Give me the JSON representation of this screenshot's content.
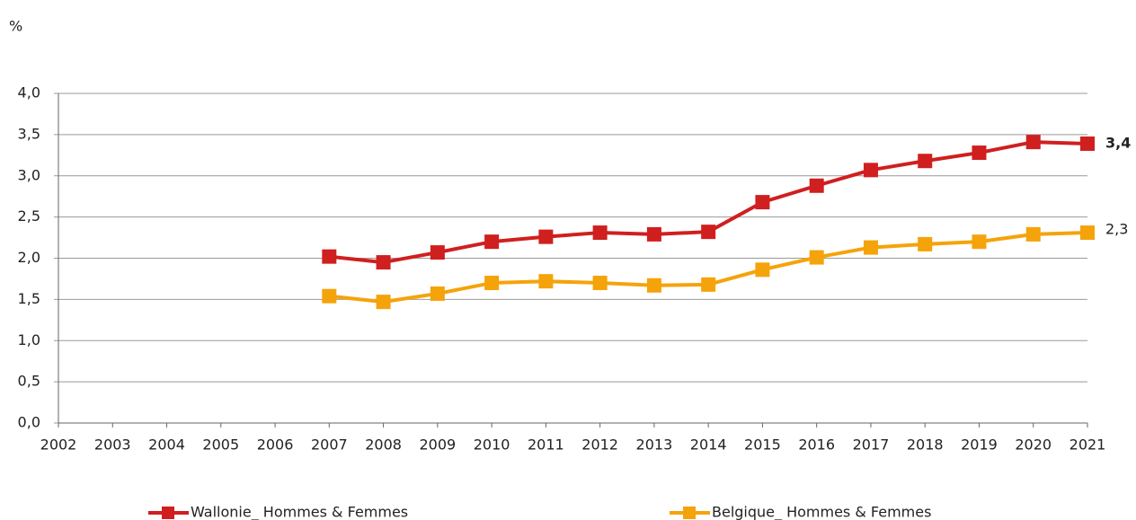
{
  "chart_data": {
    "type": "line",
    "ylabel": "%",
    "categories": [
      "2002",
      "2003",
      "2004",
      "2005",
      "2006",
      "2007",
      "2008",
      "2009",
      "2010",
      "2011",
      "2012",
      "2013",
      "2014",
      "2015",
      "2016",
      "2017",
      "2018",
      "2019",
      "2020",
      "2021"
    ],
    "series": [
      {
        "name": "Wallonie_ Hommes & Femmes",
        "color": "#d01f1f",
        "values": [
          null,
          null,
          null,
          null,
          null,
          2.02,
          1.95,
          2.07,
          2.2,
          2.26,
          2.31,
          2.29,
          2.32,
          2.68,
          2.88,
          3.07,
          3.18,
          3.28,
          3.41,
          3.39
        ],
        "value_labels": [
          null,
          null,
          null,
          null,
          null,
          null,
          null,
          null,
          null,
          null,
          null,
          null,
          null,
          null,
          null,
          null,
          null,
          null,
          null,
          "3,4"
        ]
      },
      {
        "name": "Belgique_ Hommes & Femmes",
        "color": "#f5a30a",
        "values": [
          null,
          null,
          null,
          null,
          null,
          1.54,
          1.47,
          1.57,
          1.7,
          1.72,
          1.7,
          1.67,
          1.68,
          1.86,
          2.01,
          2.13,
          2.17,
          2.2,
          2.29,
          2.31
        ],
        "value_labels": [
          null,
          null,
          null,
          null,
          null,
          null,
          null,
          null,
          null,
          null,
          null,
          null,
          null,
          null,
          null,
          null,
          null,
          null,
          null,
          "2,3"
        ]
      }
    ],
    "ylim": [
      0,
      4
    ],
    "yticks": [
      {
        "value": 0,
        "label": "0,0"
      },
      {
        "value": 0.5,
        "label": "0,5"
      },
      {
        "value": 1,
        "label": "1,0"
      },
      {
        "value": 1.5,
        "label": "1,5"
      },
      {
        "value": 2,
        "label": "2,0"
      },
      {
        "value": 2.5,
        "label": "2,5"
      },
      {
        "value": 3,
        "label": "3,0"
      },
      {
        "value": 3.5,
        "label": "3,5"
      },
      {
        "value": 4,
        "label": "4,0"
      }
    ],
    "grid": true,
    "legend": "bottom"
  }
}
